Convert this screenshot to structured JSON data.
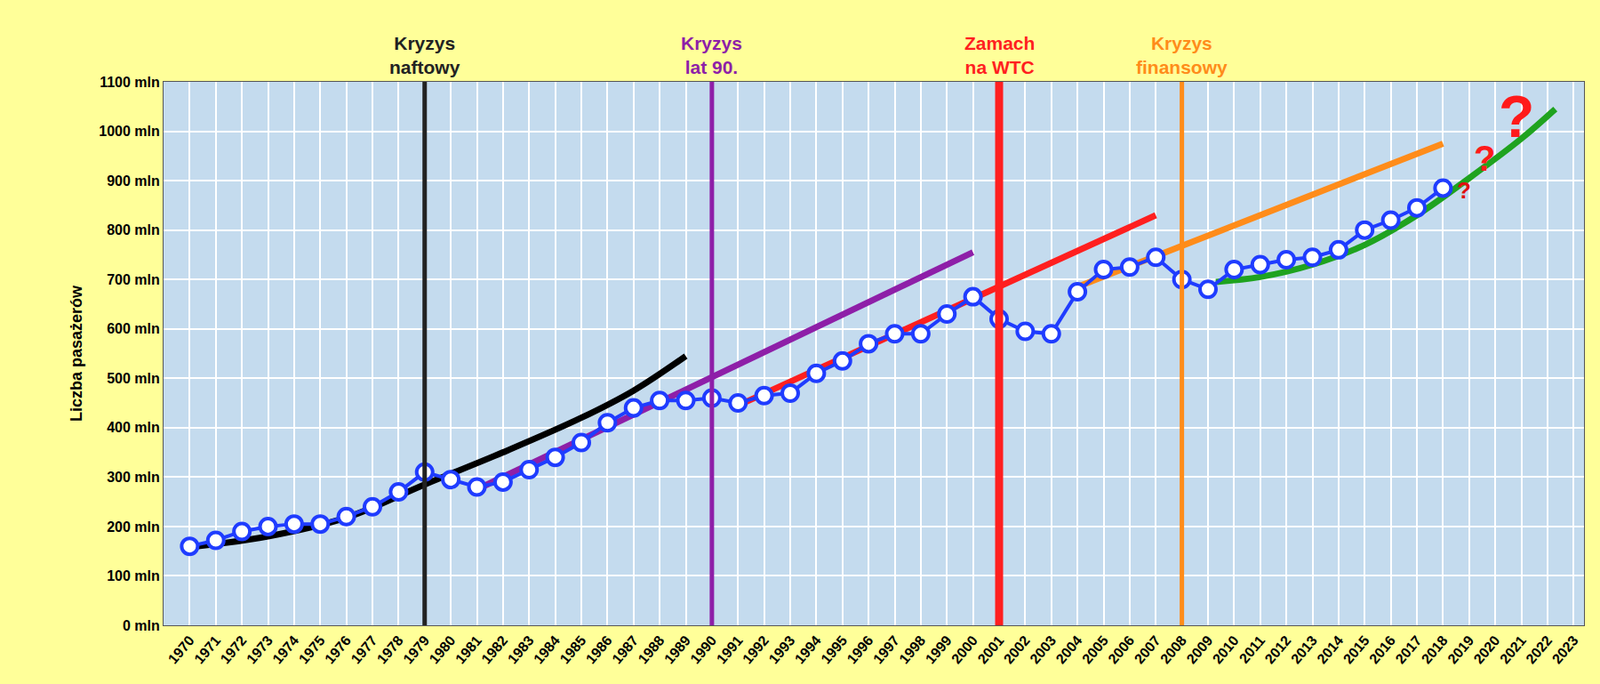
{
  "chart_data": {
    "type": "line",
    "y_title": "Liczba pasażerów",
    "xlim": [
      1969,
      2023.4
    ],
    "xticks": [
      1970,
      1971,
      1972,
      1973,
      1974,
      1975,
      1976,
      1977,
      1978,
      1979,
      1980,
      1981,
      1982,
      1983,
      1984,
      1985,
      1986,
      1987,
      1988,
      1989,
      1990,
      1991,
      1992,
      1993,
      1994,
      1995,
      1996,
      1997,
      1998,
      1999,
      2000,
      2001,
      2002,
      2003,
      2004,
      2005,
      2006,
      2007,
      2008,
      2009,
      2010,
      2011,
      2012,
      2013,
      2014,
      2015,
      2016,
      2017,
      2018,
      2019,
      2020,
      2021,
      2022,
      2023
    ],
    "ylim": [
      0,
      1100
    ],
    "yticks": [
      {
        "value": 0,
        "label": "0 mln"
      },
      {
        "value": 100,
        "label": "100 mln"
      },
      {
        "value": 200,
        "label": "200 mln"
      },
      {
        "value": 300,
        "label": "300 mln"
      },
      {
        "value": 400,
        "label": "400 mln"
      },
      {
        "value": 500,
        "label": "500 mln"
      },
      {
        "value": 600,
        "label": "600 mln"
      },
      {
        "value": 700,
        "label": "700 mln"
      },
      {
        "value": 800,
        "label": "800 mln"
      },
      {
        "value": 900,
        "label": "900 mln"
      },
      {
        "value": 1000,
        "label": "1000 mln"
      },
      {
        "value": 1100,
        "label": "1100 mln"
      }
    ],
    "grid": true,
    "series": [
      {
        "color": "#000000",
        "line_style": "spline",
        "x": [
          1970,
          1973,
          1976,
          1979,
          1982,
          1985,
          1987,
          1989
        ],
        "values": [
          158,
          180,
          218,
          285,
          350,
          420,
          475,
          545
        ]
      },
      {
        "color": "#8e1fa8",
        "line_style": "solid",
        "x": [
          1981,
          2000
        ],
        "values": [
          275,
          755
        ]
      },
      {
        "color": "#ff1f1f",
        "line_style": "solid",
        "x": [
          1991,
          2007
        ],
        "values": [
          445,
          830
        ]
      },
      {
        "color": "#ff8c1a",
        "line_style": "solid",
        "x": [
          2004,
          2018
        ],
        "values": [
          685,
          975
        ]
      },
      {
        "color": "#1fa31f",
        "line_style": "spline",
        "x": [
          2009.3,
          2011,
          2013,
          2015,
          2017,
          2019,
          2021,
          2022.3
        ],
        "values": [
          695,
          705,
          730,
          770,
          830,
          905,
          985,
          1045
        ]
      },
      {
        "color": "#1f3cff",
        "line_style": "solid",
        "marker": "circle",
        "x": [
          1970,
          1971,
          1972,
          1973,
          1974,
          1975,
          1976,
          1977,
          1978,
          1979,
          1980,
          1981,
          1982,
          1983,
          1984,
          1985,
          1986,
          1987,
          1988,
          1989,
          1990,
          1991,
          1992,
          1993,
          1994,
          1995,
          1996,
          1997,
          1998,
          1999,
          2000,
          2001,
          2002,
          2003,
          2004,
          2005,
          2006,
          2007,
          2008,
          2009,
          2010,
          2011,
          2012,
          2013,
          2014,
          2015,
          2016,
          2017,
          2018
        ],
        "values": [
          160,
          172,
          190,
          200,
          205,
          205,
          220,
          240,
          270,
          310,
          295,
          280,
          290,
          315,
          340,
          370,
          410,
          440,
          455,
          455,
          460,
          450,
          465,
          470,
          510,
          535,
          570,
          590,
          590,
          630,
          665,
          620,
          595,
          590,
          675,
          720,
          725,
          745,
          700,
          680,
          720,
          730,
          740,
          745,
          760,
          800,
          820,
          845,
          885
        ]
      }
    ],
    "events": [
      {
        "x": 1979,
        "label": "Kryzys naftowy",
        "color": "#222222"
      },
      {
        "x": 1990,
        "label": "Kryzys lat 90.",
        "color": "#8e1fa8"
      },
      {
        "x": 2001,
        "label": "Zamach na WTC",
        "color": "#ff1f1f"
      },
      {
        "x": 2008,
        "label": "Kryzys finansowy",
        "color": "#ff8c1a"
      }
    ],
    "annotations": [
      {
        "x": 2018.8,
        "y": 880,
        "text": "?",
        "color": "#e01010"
      },
      {
        "x": 2019.6,
        "y": 945,
        "text": "?",
        "color": "#ff1a1a"
      },
      {
        "x": 2020.8,
        "y": 1030,
        "text": "?",
        "color": "#ff1a1a"
      }
    ]
  }
}
